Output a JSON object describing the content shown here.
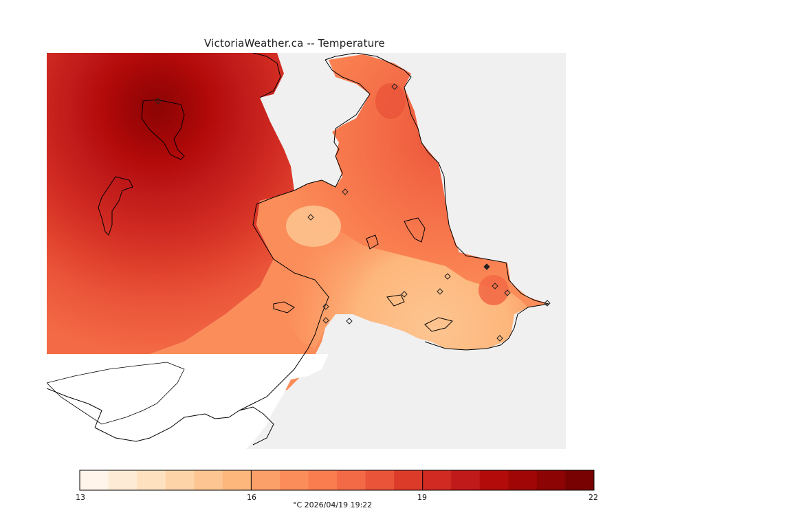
{
  "title": "VictoriaWeather.ca -- Temperature",
  "colorbar": {
    "min": 13,
    "max": 22,
    "ticks": [
      "13",
      "16",
      "19",
      "22"
    ],
    "colors": [
      "#fff5eb",
      "#feebd6",
      "#fee2c0",
      "#fdd3a8",
      "#fdc591",
      "#fdb77c",
      "#fca06a",
      "#fb8d5a",
      "#f97d4f",
      "#f36a46",
      "#ea5438",
      "#dc3b2a",
      "#d02a22",
      "#c01a1a",
      "#b30a0a",
      "#a00606",
      "#8c0404",
      "#780202"
    ]
  },
  "caption": "°C  2026/04/19 19:22",
  "colors": {
    "water": "#f0f0f0",
    "land_nodata": "#ffffff",
    "coast": "#000000"
  }
}
